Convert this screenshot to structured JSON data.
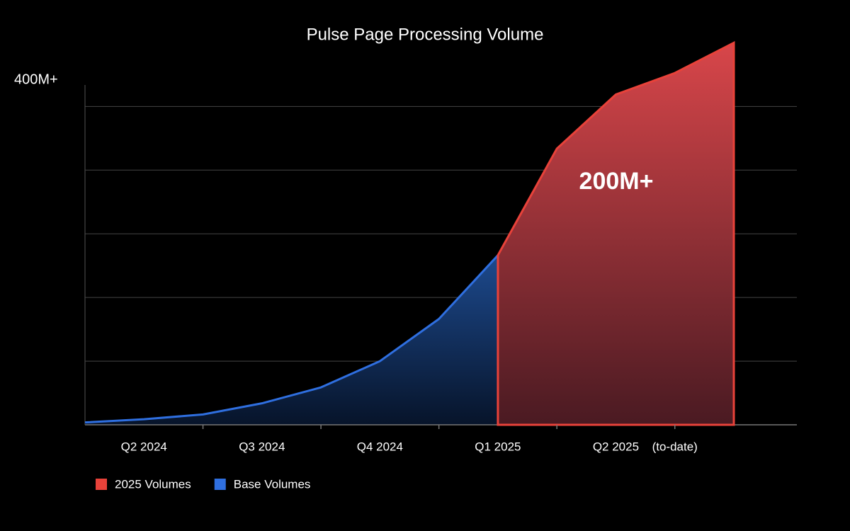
{
  "chart_data": {
    "type": "area",
    "title": "Pulse Page Processing Volume",
    "y_label": "400M+",
    "annotation": "200M+",
    "categories": [
      null,
      "Q2 2024",
      null,
      "Q3 2024",
      null,
      "Q4 2024",
      null,
      "Q1 2025",
      null,
      "Q2 2025",
      "(to-date)",
      null
    ],
    "series": [
      {
        "name": "2025 Volumes",
        "color": "#e8423a",
        "values": [
          null,
          null,
          null,
          null,
          null,
          null,
          null,
          213,
          347,
          415,
          442,
          480
        ]
      },
      {
        "name": "Base Volumes",
        "color": "#2f6fe0",
        "values": [
          3,
          7,
          13,
          27,
          47,
          80,
          133,
          213,
          null,
          null,
          null,
          null
        ]
      }
    ],
    "ylim": [
      0,
      427
    ],
    "yticks": [
      80,
      160,
      240,
      320,
      400
    ],
    "grid": true,
    "legend": "bottom-left"
  }
}
